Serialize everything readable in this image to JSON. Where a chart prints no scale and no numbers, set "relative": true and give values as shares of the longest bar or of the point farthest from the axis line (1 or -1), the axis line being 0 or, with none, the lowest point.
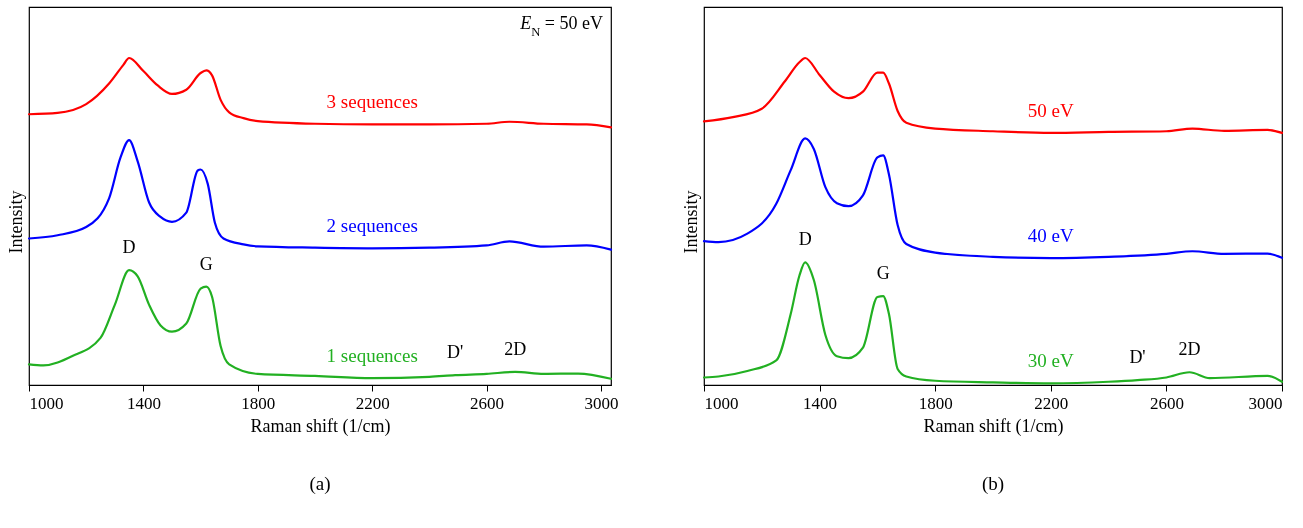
{
  "chart_data": [
    {
      "type": "line",
      "title": "(a)",
      "xlabel": "Raman shift (1/cm)",
      "ylabel": "Intensity",
      "relative": true,
      "xlim": [
        1000,
        3035
      ],
      "xticks": [
        1000,
        1400,
        1800,
        2200,
        2600,
        3000
      ],
      "grid": false,
      "legend": false,
      "marker": "none",
      "line_style": "solid",
      "annotations": [
        "E$_{N}$ = 50 eV",
        {
          "text": "D",
          "x": 1350,
          "y": 0.351
        },
        {
          "text": "G",
          "x": 1620,
          "y": 0.301
        },
        {
          "text": "D'",
          "x": 2490,
          "y": 0.03
        },
        {
          "text": "2D",
          "x": 2700,
          "y": 0.04
        }
      ],
      "series": [
        {
          "name": "3 sequences",
          "color": "#ff0000",
          "x": [
            1000,
            1100,
            1200,
            1280,
            1330,
            1350,
            1400,
            1450,
            1500,
            1550,
            1600,
            1620,
            1640,
            1670,
            1700,
            1750,
            1800,
            2000,
            2200,
            2400,
            2600,
            2680,
            2800,
            2950,
            3035
          ],
          "values": [
            0.828,
            0.832,
            0.859,
            0.922,
            0.979,
            1.0,
            0.96,
            0.916,
            0.89,
            0.903,
            0.954,
            0.962,
            0.947,
            0.872,
            0.834,
            0.816,
            0.807,
            0.799,
            0.797,
            0.797,
            0.799,
            0.805,
            0.799,
            0.797,
            0.788
          ]
        },
        {
          "name": "2 sequences",
          "color": "#0000ff",
          "x": [
            1000,
            1100,
            1200,
            1280,
            1320,
            1350,
            1380,
            1420,
            1460,
            1500,
            1550,
            1590,
            1600,
            1625,
            1650,
            1680,
            1750,
            1800,
            2000,
            2200,
            2400,
            2600,
            2680,
            2800,
            2950,
            3035
          ],
          "values": [
            0.448,
            0.458,
            0.483,
            0.571,
            0.696,
            0.749,
            0.684,
            0.558,
            0.514,
            0.499,
            0.527,
            0.656,
            0.659,
            0.615,
            0.496,
            0.448,
            0.43,
            0.424,
            0.42,
            0.418,
            0.42,
            0.427,
            0.439,
            0.423,
            0.427,
            0.414
          ]
        },
        {
          "name": "1 sequences",
          "color": "#22b022",
          "x": [
            1000,
            1050,
            1150,
            1250,
            1300,
            1350,
            1380,
            1420,
            1460,
            1500,
            1550,
            1600,
            1620,
            1640,
            1670,
            1700,
            1800,
            2000,
            2200,
            2400,
            2490,
            2600,
            2700,
            2800,
            2920,
            3035
          ],
          "values": [
            0.063,
            0.06,
            0.088,
            0.144,
            0.245,
            0.351,
            0.332,
            0.245,
            0.182,
            0.163,
            0.188,
            0.295,
            0.301,
            0.27,
            0.119,
            0.063,
            0.034,
            0.028,
            0.021,
            0.025,
            0.03,
            0.034,
            0.04,
            0.034,
            0.035,
            0.019
          ]
        }
      ]
    },
    {
      "type": "line",
      "title": "(b)",
      "xlabel": "Raman shift (1/cm)",
      "ylabel": "Intensity",
      "relative": true,
      "xlim": [
        1000,
        3000
      ],
      "xticks": [
        1000,
        1400,
        1800,
        2200,
        2600,
        3000
      ],
      "grid": false,
      "legend": false,
      "marker": "none",
      "line_style": "solid",
      "annotations": [
        {
          "text": "D",
          "x": 1350,
          "y": 0.375
        },
        {
          "text": "G",
          "x": 1620,
          "y": 0.272
        },
        {
          "text": "D'",
          "x": 2500,
          "y": 0.015
        },
        {
          "text": "2D",
          "x": 2680,
          "y": 0.039
        }
      ],
      "series": [
        {
          "name": "50 eV",
          "color": "#ff0000",
          "x": [
            1000,
            1100,
            1200,
            1280,
            1330,
            1350,
            1400,
            1450,
            1500,
            1550,
            1600,
            1620,
            1640,
            1670,
            1700,
            1800,
            2000,
            2200,
            2400,
            2600,
            2690,
            2800,
            2950,
            3000
          ],
          "values": [
            0.806,
            0.819,
            0.845,
            0.929,
            0.987,
            1.0,
            0.948,
            0.897,
            0.877,
            0.897,
            0.955,
            0.955,
            0.922,
            0.838,
            0.802,
            0.784,
            0.776,
            0.771,
            0.774,
            0.776,
            0.784,
            0.777,
            0.78,
            0.771
          ]
        },
        {
          "name": "40 eV",
          "color": "#0000ff",
          "x": [
            1000,
            1050,
            1150,
            1250,
            1300,
            1350,
            1380,
            1420,
            1460,
            1500,
            1550,
            1600,
            1620,
            1640,
            1670,
            1700,
            1800,
            2000,
            2200,
            2400,
            2600,
            2690,
            2800,
            2950,
            3000
          ],
          "values": [
            0.44,
            0.437,
            0.463,
            0.554,
            0.657,
            0.754,
            0.722,
            0.605,
            0.556,
            0.547,
            0.58,
            0.696,
            0.702,
            0.644,
            0.489,
            0.431,
            0.405,
            0.392,
            0.388,
            0.392,
            0.401,
            0.409,
            0.401,
            0.402,
            0.389
          ]
        },
        {
          "name": "30 eV",
          "color": "#22b022",
          "x": [
            1000,
            1050,
            1150,
            1250,
            1300,
            1330,
            1350,
            1380,
            1420,
            1460,
            1500,
            1550,
            1600,
            1620,
            1640,
            1670,
            1700,
            1800,
            2000,
            2200,
            2400,
            2500,
            2600,
            2680,
            2750,
            2950,
            3000
          ],
          "values": [
            0.023,
            0.026,
            0.043,
            0.075,
            0.217,
            0.334,
            0.375,
            0.321,
            0.153,
            0.088,
            0.082,
            0.114,
            0.269,
            0.272,
            0.217,
            0.049,
            0.026,
            0.013,
            0.008,
            0.005,
            0.01,
            0.015,
            0.023,
            0.039,
            0.021,
            0.028,
            0.01
          ]
        }
      ]
    }
  ]
}
